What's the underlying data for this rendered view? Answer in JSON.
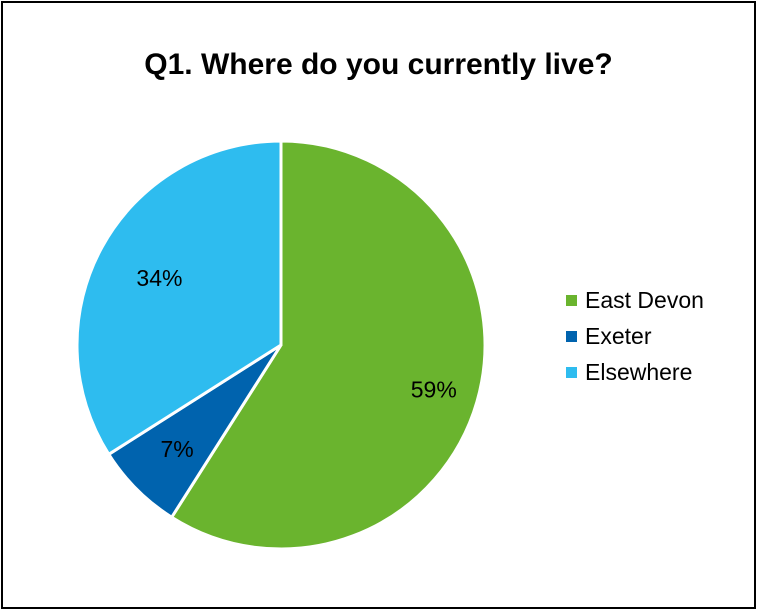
{
  "chart_data": {
    "type": "pie",
    "title": "Q1. Where do you currently live?",
    "categories": [
      "East Devon",
      "Exeter",
      "Elsewhere"
    ],
    "values": [
      59,
      7,
      34
    ],
    "data_labels": [
      "59%",
      "7%",
      "34%"
    ],
    "colors": [
      "#6ab42e",
      "#0063ae",
      "#2ebcef"
    ],
    "legend_position": "right"
  }
}
